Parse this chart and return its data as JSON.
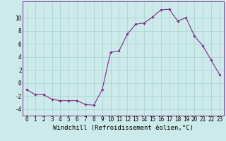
{
  "x": [
    0,
    1,
    2,
    3,
    4,
    5,
    6,
    7,
    8,
    9,
    10,
    11,
    12,
    13,
    14,
    15,
    16,
    17,
    18,
    19,
    20,
    21,
    22,
    23
  ],
  "y": [
    -1,
    -1.8,
    -1.8,
    -2.5,
    -2.7,
    -2.7,
    -2.7,
    -3.3,
    -3.4,
    -1.0,
    4.7,
    4.9,
    7.5,
    9.0,
    9.2,
    10.1,
    11.2,
    11.3,
    9.5,
    10.0,
    7.2,
    5.7,
    3.5,
    1.3
  ],
  "line_color": "#7b2d8b",
  "marker": "D",
  "marker_size": 1.8,
  "background_color": "#cdeaea",
  "grid_color": "#aacece",
  "xlabel": "Windchill (Refroidissement éolien,°C)",
  "xlabel_fontsize": 6.5,
  "tick_fontsize": 5.5,
  "xlim": [
    -0.5,
    23.5
  ],
  "ylim": [
    -5,
    12.5
  ],
  "yticks": [
    -4,
    -2,
    0,
    2,
    4,
    6,
    8,
    10
  ],
  "xticks": [
    0,
    1,
    2,
    3,
    4,
    5,
    6,
    7,
    8,
    9,
    10,
    11,
    12,
    13,
    14,
    15,
    16,
    17,
    18,
    19,
    20,
    21,
    22,
    23
  ]
}
